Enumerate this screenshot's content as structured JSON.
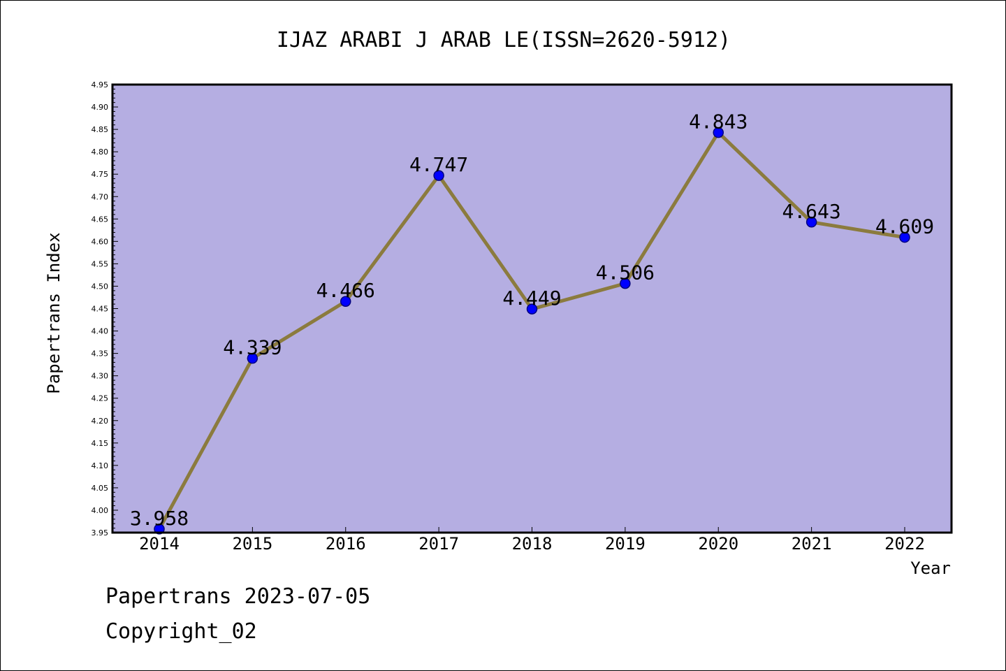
{
  "chart_data": {
    "type": "line",
    "title": "IJAZ ARABI J ARAB LE(ISSN=2620-5912)",
    "xlabel": "Year",
    "ylabel": "Papertrans Index",
    "categories": [
      "2014",
      "2015",
      "2016",
      "2017",
      "2018",
      "2019",
      "2020",
      "2021",
      "2022"
    ],
    "values": [
      3.958,
      4.339,
      4.466,
      4.747,
      4.449,
      4.506,
      4.843,
      4.643,
      4.609
    ],
    "value_labels": [
      "3.958",
      "4.339",
      "4.466",
      "4.747",
      "4.449",
      "4.506",
      "4.843",
      "4.643",
      "4.609"
    ],
    "ylim": [
      3.95,
      4.95
    ],
    "y_ticks": [
      "3.95",
      "4.00",
      "4.05",
      "4.10",
      "4.15",
      "4.20",
      "4.25",
      "4.30",
      "4.35",
      "4.40",
      "4.45",
      "4.50",
      "4.55",
      "4.60",
      "4.65",
      "4.70",
      "4.75",
      "4.80",
      "4.85",
      "4.90",
      "4.95"
    ],
    "grid": false,
    "legend": "none",
    "colors": {
      "plot_background": "#b5aee2",
      "line": "#8b7b3e",
      "marker": "#0000ff",
      "marker_edge": "#000080",
      "frame": "#000000"
    }
  },
  "footer": {
    "line1": "Papertrans 2023-07-05",
    "line2": "Copyright_02"
  }
}
